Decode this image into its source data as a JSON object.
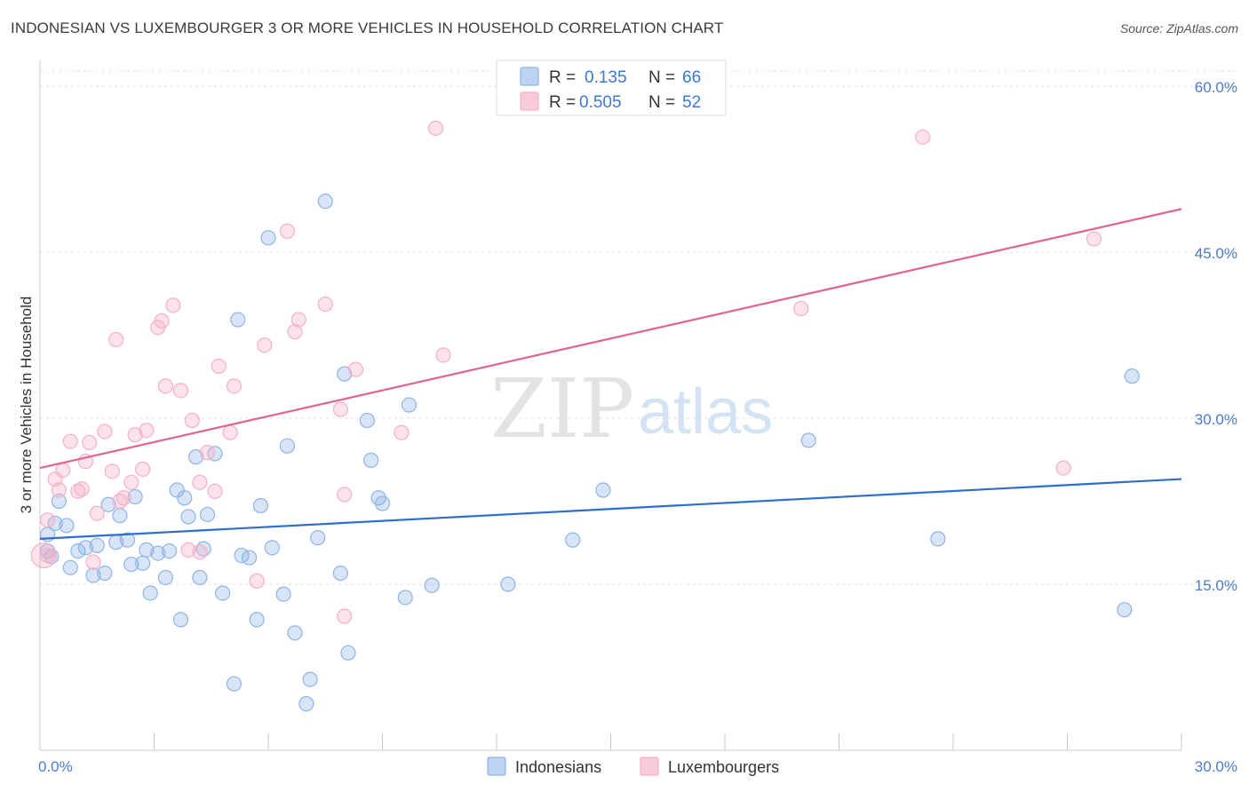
{
  "header": {
    "title": "INDONESIAN VS LUXEMBOURGER 3 OR MORE VEHICLES IN HOUSEHOLD CORRELATION CHART",
    "source": "Source: ZipAtlas.com"
  },
  "watermark": {
    "zip": "ZIP",
    "atlas": "atlas"
  },
  "legend": {
    "r_label": "R =",
    "n_label": "N =",
    "rows": [
      {
        "r": "0.135",
        "n": "66"
      },
      {
        "r": "0.505",
        "n": "52"
      }
    ]
  },
  "chart_data": {
    "type": "scatter",
    "title": "INDONESIAN VS LUXEMBOURGER 3 OR MORE VEHICLES IN HOUSEHOLD CORRELATION CHART",
    "xlabel": "",
    "ylabel": "3 or more Vehicles in Household",
    "xlim": [
      0,
      30
    ],
    "ylim": [
      0,
      60
    ],
    "x_ticks": [
      {
        "value": 0,
        "label": "0.0%"
      },
      {
        "value": 30,
        "label": "30.0%"
      }
    ],
    "y_ticks": [
      {
        "value": 15,
        "label": "15.0%"
      },
      {
        "value": 30,
        "label": "30.0%"
      },
      {
        "value": 45,
        "label": "45.0%"
      },
      {
        "value": 60,
        "label": "60.0%"
      }
    ],
    "grid": true,
    "legend_position": "top-center",
    "series": [
      {
        "name": "Indonesians",
        "color": "#8fb4e6",
        "line_color": "#2f6fc9",
        "r": 0.135,
        "n": 66,
        "trend": {
          "x0": 0,
          "y0": 19.1,
          "x1": 30,
          "y1": 24.5
        },
        "points": [
          [
            0.2,
            19.5
          ],
          [
            0.3,
            17.5
          ],
          [
            0.4,
            20.5
          ],
          [
            0.5,
            22.5
          ],
          [
            0.7,
            20.3
          ],
          [
            0.8,
            16.5
          ],
          [
            1.0,
            18.0
          ],
          [
            1.2,
            18.3
          ],
          [
            1.4,
            15.8
          ],
          [
            1.5,
            18.5
          ],
          [
            1.7,
            16.0
          ],
          [
            1.8,
            22.2
          ],
          [
            2.0,
            18.8
          ],
          [
            2.1,
            21.2
          ],
          [
            2.3,
            19.0
          ],
          [
            2.4,
            16.8
          ],
          [
            2.5,
            22.9
          ],
          [
            2.7,
            16.9
          ],
          [
            2.8,
            18.1
          ],
          [
            2.9,
            14.2
          ],
          [
            3.1,
            17.8
          ],
          [
            3.3,
            15.6
          ],
          [
            3.4,
            18.0
          ],
          [
            3.6,
            23.5
          ],
          [
            3.7,
            11.8
          ],
          [
            3.8,
            22.8
          ],
          [
            3.9,
            21.1
          ],
          [
            4.1,
            26.5
          ],
          [
            4.2,
            15.6
          ],
          [
            4.3,
            18.2
          ],
          [
            4.4,
            21.3
          ],
          [
            4.6,
            26.8
          ],
          [
            4.8,
            14.2
          ],
          [
            5.1,
            6.0
          ],
          [
            5.2,
            38.9
          ],
          [
            5.3,
            17.6
          ],
          [
            5.5,
            17.4
          ],
          [
            5.7,
            11.8
          ],
          [
            5.8,
            22.1
          ],
          [
            6.0,
            46.3
          ],
          [
            6.1,
            18.3
          ],
          [
            6.4,
            14.1
          ],
          [
            6.5,
            27.5
          ],
          [
            6.7,
            10.6
          ],
          [
            7.0,
            4.2
          ],
          [
            7.1,
            6.4
          ],
          [
            7.3,
            19.2
          ],
          [
            7.5,
            49.6
          ],
          [
            7.9,
            16.0
          ],
          [
            8.0,
            34.0
          ],
          [
            8.1,
            8.8
          ],
          [
            8.6,
            29.8
          ],
          [
            8.7,
            26.2
          ],
          [
            8.9,
            22.8
          ],
          [
            9.0,
            22.3
          ],
          [
            9.6,
            13.8
          ],
          [
            9.7,
            31.2
          ],
          [
            10.3,
            14.9
          ],
          [
            12.3,
            15.0
          ],
          [
            14.0,
            19.0
          ],
          [
            14.8,
            23.5
          ],
          [
            20.2,
            28.0
          ],
          [
            23.6,
            19.1
          ],
          [
            28.5,
            12.7
          ],
          [
            28.7,
            33.8
          ],
          [
            0.2,
            18.0
          ]
        ]
      },
      {
        "name": "Luxembourgers",
        "color": "#f5afc6",
        "line_color": "#e0648f",
        "r": 0.505,
        "n": 52,
        "trend": {
          "x0": 0,
          "y0": 25.5,
          "x1": 30,
          "y1": 48.9
        },
        "points": [
          [
            0.2,
            17.6
          ],
          [
            0.2,
            20.8
          ],
          [
            0.4,
            24.5
          ],
          [
            0.5,
            23.5
          ],
          [
            0.6,
            25.3
          ],
          [
            0.8,
            27.9
          ],
          [
            1.0,
            23.4
          ],
          [
            1.1,
            23.6
          ],
          [
            1.2,
            26.1
          ],
          [
            1.3,
            27.8
          ],
          [
            1.4,
            17.0
          ],
          [
            1.5,
            21.4
          ],
          [
            1.7,
            28.8
          ],
          [
            1.9,
            25.2
          ],
          [
            2.0,
            37.1
          ],
          [
            2.1,
            22.5
          ],
          [
            2.2,
            22.8
          ],
          [
            2.4,
            24.2
          ],
          [
            2.5,
            28.5
          ],
          [
            2.7,
            25.4
          ],
          [
            2.8,
            28.9
          ],
          [
            3.1,
            38.2
          ],
          [
            3.2,
            38.8
          ],
          [
            3.3,
            32.9
          ],
          [
            3.5,
            40.2
          ],
          [
            3.7,
            32.5
          ],
          [
            3.9,
            18.1
          ],
          [
            4.0,
            29.8
          ],
          [
            4.2,
            17.9
          ],
          [
            4.2,
            24.2
          ],
          [
            4.4,
            26.9
          ],
          [
            4.6,
            23.4
          ],
          [
            4.7,
            34.7
          ],
          [
            5.0,
            28.7
          ],
          [
            5.1,
            32.9
          ],
          [
            5.7,
            15.3
          ],
          [
            5.9,
            36.6
          ],
          [
            6.5,
            46.9
          ],
          [
            6.7,
            37.8
          ],
          [
            6.8,
            38.9
          ],
          [
            7.5,
            40.3
          ],
          [
            7.9,
            30.8
          ],
          [
            8.0,
            12.1
          ],
          [
            8.0,
            23.1
          ],
          [
            8.3,
            34.4
          ],
          [
            9.5,
            28.7
          ],
          [
            10.4,
            56.2
          ],
          [
            10.6,
            35.7
          ],
          [
            20.0,
            39.9
          ],
          [
            23.2,
            55.4
          ],
          [
            26.9,
            25.5
          ],
          [
            27.7,
            46.2
          ]
        ]
      }
    ]
  },
  "bottom_legend": {
    "items": [
      {
        "label": "Indonesians"
      },
      {
        "label": "Luxembourgers"
      }
    ]
  }
}
